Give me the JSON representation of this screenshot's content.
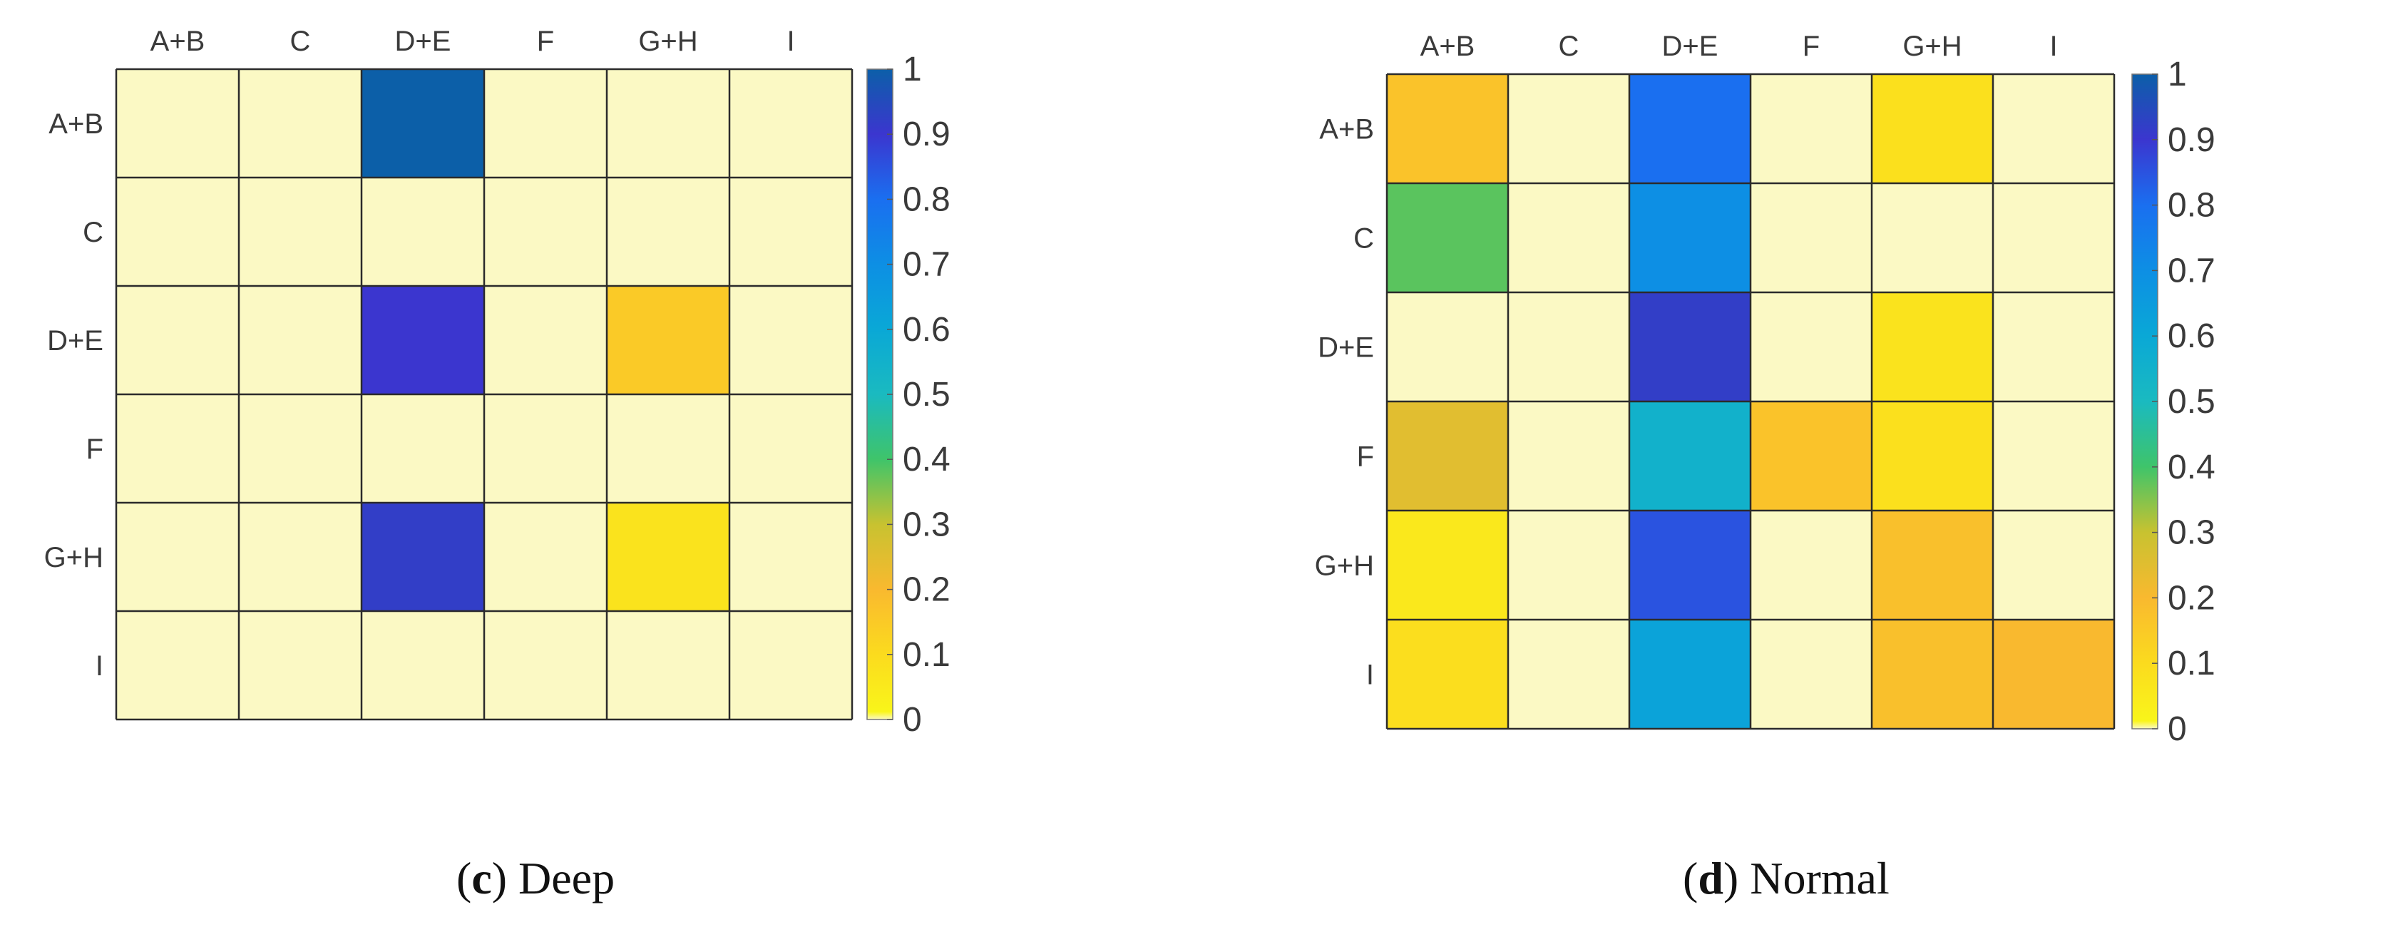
{
  "chart_data": [
    {
      "type": "heatmap",
      "caption_letter": "c",
      "caption_text": " Deep",
      "x_labels": [
        "A+B",
        "C",
        "D+E",
        "F",
        "G+H",
        "I"
      ],
      "y_labels": [
        "A+B",
        "C",
        "D+E",
        "F",
        "G+H",
        "I"
      ],
      "values": [
        [
          0,
          0,
          1.0,
          0,
          0,
          0
        ],
        [
          0,
          0,
          0,
          0,
          0,
          0
        ],
        [
          0,
          0,
          0.9,
          0,
          0.15,
          0
        ],
        [
          0,
          0,
          0,
          0,
          0,
          0
        ],
        [
          0,
          0,
          0.92,
          0,
          0.07,
          0
        ],
        [
          0,
          0,
          0,
          0,
          0,
          0
        ]
      ],
      "colorbar": {
        "ticks": [
          0,
          0.1,
          0.2,
          0.3,
          0.4,
          0.5,
          0.6,
          0.7,
          0.8,
          0.9,
          1
        ],
        "tick_labels": [
          "0",
          "0.1",
          "0.2",
          "0.3",
          "0.4",
          "0.5",
          "0.6",
          "0.7",
          "0.8",
          "0.9",
          "1"
        ],
        "range": [
          0,
          1
        ]
      }
    },
    {
      "type": "heatmap",
      "caption_letter": "d",
      "caption_text": " Normal",
      "x_labels": [
        "A+B",
        "C",
        "D+E",
        "F",
        "G+H",
        "I"
      ],
      "y_labels": [
        "A+B",
        "C",
        "D+E",
        "F",
        "G+H",
        "I"
      ],
      "values": [
        [
          0.17,
          0,
          0.8,
          0,
          0.08,
          0
        ],
        [
          0.38,
          0,
          0.7,
          0,
          0,
          0
        ],
        [
          0,
          0,
          0.92,
          0,
          0.07,
          0
        ],
        [
          0.25,
          0,
          0.55,
          0.17,
          0.08,
          0
        ],
        [
          0.05,
          0,
          0.85,
          0,
          0.18,
          0
        ],
        [
          0.09,
          0,
          0.62,
          0,
          0.18,
          0.2
        ]
      ],
      "colorbar": {
        "ticks": [
          0,
          0.1,
          0.2,
          0.3,
          0.4,
          0.5,
          0.6,
          0.7,
          0.8,
          0.9,
          1
        ],
        "tick_labels": [
          "0",
          "0.1",
          "0.2",
          "0.3",
          "0.4",
          "0.5",
          "0.6",
          "0.7",
          "0.8",
          "0.9",
          "1"
        ],
        "range": [
          0,
          1
        ]
      }
    }
  ],
  "colormap": {
    "zero_color": "#fbf9c4",
    "stops": [
      [
        0.0,
        "#f9f51a"
      ],
      [
        0.1,
        "#fbdb1e"
      ],
      [
        0.2,
        "#f9b92f"
      ],
      [
        0.3,
        "#c8c230"
      ],
      [
        0.4,
        "#3fc46a"
      ],
      [
        0.5,
        "#1abac0"
      ],
      [
        0.6,
        "#0aa8d6"
      ],
      [
        0.7,
        "#0d8fe4"
      ],
      [
        0.8,
        "#1a6ff0"
      ],
      [
        0.9,
        "#3b36cf"
      ],
      [
        1.0,
        "#0c5fa8"
      ]
    ]
  }
}
